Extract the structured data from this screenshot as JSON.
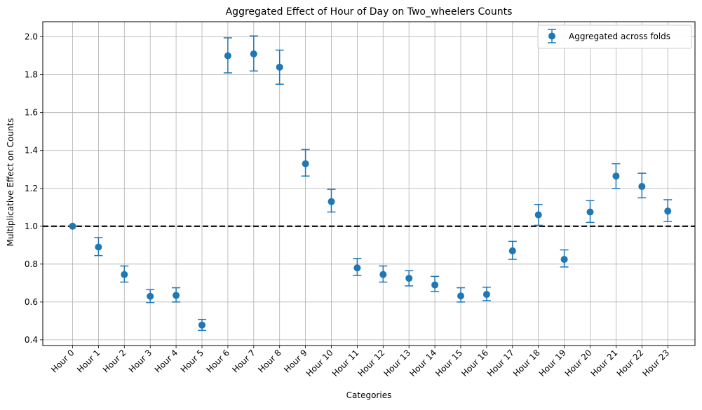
{
  "chart_data": {
    "type": "scatter",
    "title": "Aggregated Effect of Hour of Day on Two_wheelers Counts",
    "xlabel": "Categories",
    "ylabel": "Multiplicative Effect on Counts",
    "ylim": [
      0.37,
      2.08
    ],
    "yticks": [
      0.4,
      0.6,
      0.8,
      1.0,
      1.2,
      1.4,
      1.6,
      1.8,
      2.0
    ],
    "ytick_labels": [
      "0.4",
      "0.6",
      "0.8",
      "1.0",
      "1.2",
      "1.4",
      "1.6",
      "1.8",
      "2.0"
    ],
    "grid": true,
    "legend_position": "top-right",
    "reference_line": {
      "y": 1.0,
      "style": "dashed",
      "color": "#000000"
    },
    "categories": [
      "Hour 0",
      "Hour 1",
      "Hour 2",
      "Hour 3",
      "Hour 4",
      "Hour 5",
      "Hour 6",
      "Hour 7",
      "Hour 8",
      "Hour 9",
      "Hour 10",
      "Hour 11",
      "Hour 12",
      "Hour 13",
      "Hour 14",
      "Hour 15",
      "Hour 16",
      "Hour 17",
      "Hour 18",
      "Hour 19",
      "Hour 20",
      "Hour 21",
      "Hour 22",
      "Hour 23"
    ],
    "series": [
      {
        "name": "Aggregated across folds",
        "color": "#1f77b4",
        "values": [
          1.0,
          0.89,
          0.745,
          0.63,
          0.635,
          0.478,
          1.9,
          1.91,
          1.84,
          1.33,
          1.13,
          0.78,
          0.745,
          0.725,
          0.69,
          0.632,
          0.64,
          0.87,
          1.06,
          0.825,
          1.075,
          1.265,
          1.21,
          1.08
        ],
        "lower": [
          1.0,
          0.845,
          0.705,
          0.597,
          0.6,
          0.45,
          1.81,
          1.82,
          1.75,
          1.265,
          1.075,
          0.74,
          0.705,
          0.685,
          0.655,
          0.6,
          0.607,
          0.825,
          1.005,
          0.785,
          1.02,
          1.2,
          1.15,
          1.025
        ],
        "upper": [
          1.0,
          0.94,
          0.79,
          0.665,
          0.675,
          0.508,
          1.995,
          2.005,
          1.93,
          1.405,
          1.195,
          0.83,
          0.79,
          0.765,
          0.735,
          0.675,
          0.678,
          0.92,
          1.115,
          0.875,
          1.135,
          1.33,
          1.28,
          1.14
        ]
      }
    ]
  }
}
